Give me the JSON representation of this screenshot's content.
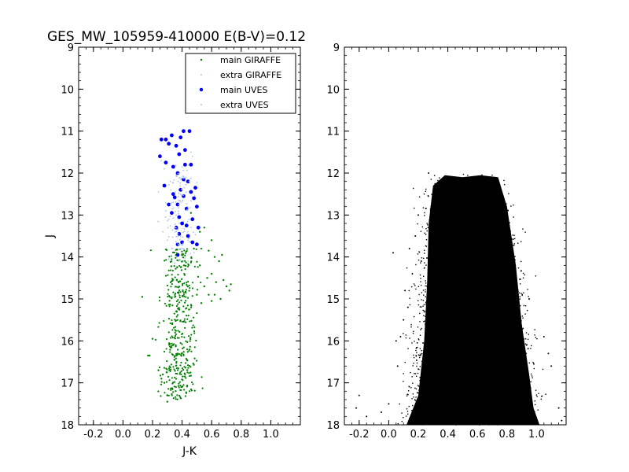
{
  "chart_data": [
    {
      "type": "scatter",
      "title": "GES_MW_105959-410000 E(B-V)=0.12",
      "xlabel": "J-K",
      "ylabel": "J",
      "xlim": [
        -0.3,
        1.2
      ],
      "ylim": [
        18,
        9
      ],
      "y_inverted": true,
      "x_ticks": [
        "-0.2",
        "0.0",
        "0.2",
        "0.4",
        "0.6",
        "0.8",
        "1.0"
      ],
      "y_ticks": [
        "9",
        "10",
        "11",
        "12",
        "13",
        "14",
        "15",
        "16",
        "17",
        "18"
      ],
      "grid": false,
      "legend_position": "top-right",
      "series": [
        {
          "name": "main GIRAFFE",
          "color": "#008000",
          "marker_size": 1.2,
          "points": [
            [
              0.46,
              12.95
            ],
            [
              0.52,
              13.4
            ],
            [
              0.55,
              13.3
            ],
            [
              0.6,
              13.6
            ],
            [
              0.58,
              13.85
            ],
            [
              0.62,
              14.0
            ],
            [
              0.65,
              14.1
            ],
            [
              0.67,
              13.95
            ],
            [
              0.6,
              14.4
            ],
            [
              0.63,
              14.6
            ],
            [
              0.7,
              14.7
            ],
            [
              0.72,
              14.8
            ],
            [
              0.55,
              14.7
            ],
            [
              0.58,
              14.9
            ],
            [
              0.66,
              15.0
            ],
            [
              0.48,
              13.8
            ],
            [
              0.52,
              14.2
            ],
            [
              0.57,
              14.5
            ],
            [
              0.5,
              14.9
            ],
            [
              0.53,
              15.1
            ],
            [
              0.68,
              14.55
            ],
            [
              0.62,
              14.9
            ],
            [
              0.73,
              14.65
            ],
            [
              0.6,
              15.05
            ],
            [
              0.13,
              14.95
            ],
            [
              0.17,
              16.35
            ],
            [
              0.18,
              16.35
            ],
            [
              0.2,
              15.95
            ],
            [
              0.24,
              16.7
            ],
            [
              0.27,
              16.8
            ],
            [
              0.3,
              17.3
            ],
            [
              0.3,
              17.45
            ],
            [
              0.26,
              16.9
            ],
            [
              0.28,
              17.0
            ]
          ]
        },
        {
          "name": "extra GIRAFFE",
          "color": "#a9c5e6",
          "marker_size": 0.9,
          "points": [
            [
              0.24,
              12.45
            ],
            [
              0.29,
              12.9
            ],
            [
              0.31,
              13.1
            ],
            [
              0.27,
              13.4
            ],
            [
              0.3,
              13.6
            ],
            [
              0.33,
              13.8
            ],
            [
              0.37,
              13.35
            ],
            [
              0.41,
              13.15
            ],
            [
              0.39,
              13.5
            ],
            [
              0.44,
              13.6
            ],
            [
              0.46,
              13.3
            ],
            [
              0.36,
              13.0
            ],
            [
              0.34,
              12.7
            ],
            [
              0.38,
              12.4
            ],
            [
              0.42,
              12.2
            ],
            [
              0.32,
              12.2
            ],
            [
              0.28,
              11.9
            ],
            [
              0.26,
              11.7
            ],
            [
              0.46,
              11.5
            ],
            [
              0.47,
              11.6
            ],
            [
              0.31,
              14.05
            ],
            [
              0.35,
              14.15
            ],
            [
              0.44,
              14.1
            ],
            [
              0.4,
              14.0
            ],
            [
              0.48,
              13.9
            ]
          ]
        },
        {
          "name": "main UVES",
          "color": "#0000ff",
          "marker_size": 2.4,
          "points": [
            [
              0.26,
              11.2
            ],
            [
              0.29,
              11.2
            ],
            [
              0.31,
              11.3
            ],
            [
              0.33,
              11.1
            ],
            [
              0.36,
              11.35
            ],
            [
              0.39,
              11.15
            ],
            [
              0.41,
              11.0
            ],
            [
              0.45,
              11.0
            ],
            [
              0.38,
              11.55
            ],
            [
              0.42,
              11.45
            ],
            [
              0.25,
              11.6
            ],
            [
              0.29,
              11.75
            ],
            [
              0.34,
              11.85
            ],
            [
              0.42,
              11.8
            ],
            [
              0.46,
              11.8
            ],
            [
              0.37,
              12.0
            ],
            [
              0.41,
              12.15
            ],
            [
              0.44,
              12.2
            ],
            [
              0.39,
              12.4
            ],
            [
              0.49,
              12.35
            ],
            [
              0.28,
              12.3
            ],
            [
              0.34,
              12.5
            ],
            [
              0.35,
              12.58
            ],
            [
              0.41,
              12.55
            ],
            [
              0.46,
              12.45
            ],
            [
              0.48,
              12.6
            ],
            [
              0.31,
              12.75
            ],
            [
              0.37,
              12.75
            ],
            [
              0.43,
              12.85
            ],
            [
              0.5,
              12.8
            ],
            [
              0.33,
              12.95
            ],
            [
              0.38,
              13.05
            ],
            [
              0.4,
              13.2
            ],
            [
              0.47,
              13.1
            ],
            [
              0.36,
              13.3
            ],
            [
              0.43,
              13.25
            ],
            [
              0.51,
              13.3
            ],
            [
              0.44,
              13.5
            ],
            [
              0.38,
              13.45
            ],
            [
              0.37,
              13.7
            ],
            [
              0.4,
              13.65
            ],
            [
              0.47,
              13.65
            ],
            [
              0.5,
              13.7
            ],
            [
              0.37,
              13.95
            ]
          ]
        },
        {
          "name": "extra UVES",
          "color": "#a9c5e6",
          "marker_size": 0.9,
          "points": []
        }
      ]
    },
    {
      "type": "scatter",
      "title": "",
      "xlabel": "",
      "ylabel": "",
      "xlim": [
        -0.3,
        1.2
      ],
      "ylim": [
        18,
        9
      ],
      "y_inverted": true,
      "x_ticks": [
        "-0.2",
        "0.0",
        "0.2",
        "0.4",
        "0.6",
        "0.8",
        "1.0"
      ],
      "y_ticks": [
        "9",
        "10",
        "11",
        "12",
        "13",
        "14",
        "15",
        "16",
        "17",
        "18"
      ],
      "grid": false,
      "series": [
        {
          "color": "#000000",
          "density": "dense region, J from 12.0 to 18.0, J-K roughly 0.20 to 0.95, widening toward faint magnitudes",
          "points": [
            [
              -0.2,
              17.3
            ],
            [
              -0.22,
              17.6
            ],
            [
              -0.15,
              17.8
            ],
            [
              -0.05,
              17.7
            ],
            [
              0.0,
              17.5
            ],
            [
              0.03,
              13.9
            ],
            [
              0.05,
              16.0
            ],
            [
              0.06,
              16.6
            ],
            [
              0.08,
              15.9
            ],
            [
              0.1,
              15.5
            ],
            [
              0.11,
              14.8
            ],
            [
              0.13,
              15.2
            ],
            [
              0.14,
              13.8
            ],
            [
              0.16,
              14.4
            ],
            [
              0.18,
              13.5
            ],
            [
              0.2,
              13.0
            ],
            [
              0.22,
              14.1
            ],
            [
              0.27,
              12.0
            ],
            [
              1.05,
              15.9
            ],
            [
              1.08,
              16.3
            ],
            [
              1.1,
              16.6
            ],
            [
              1.15,
              17.6
            ],
            [
              1.17,
              17.9
            ],
            [
              0.95,
              15.0
            ]
          ]
        }
      ]
    }
  ]
}
